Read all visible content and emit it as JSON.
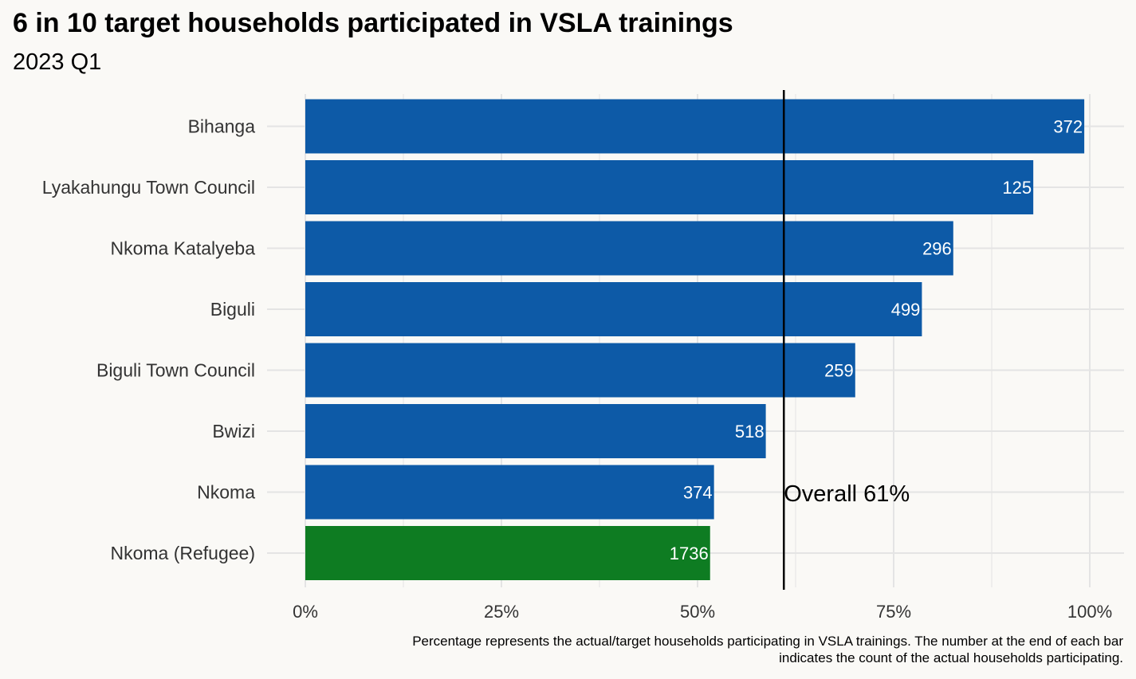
{
  "title": "6 in 10 target households participated in VSLA trainings",
  "subtitle": "2023 Q1",
  "caption_line1": "Percentage represents the actual/target households participating in VSLA trainings. The number at the end of each bar",
  "caption_line2": "indicates the count of the actual households participating.",
  "colors": {
    "bar": "#0d5aa7",
    "highlight": "#0e7c22",
    "background": "#faf9f6",
    "grid": "#e4e4e4"
  },
  "chart_data": {
    "type": "bar",
    "orientation": "horizontal",
    "categories": [
      "Bihanga",
      "Lyakahungu Town Council",
      "Nkoma Katalyeba",
      "Biguli",
      "Biguli Town Council",
      "Bwizi",
      "Nkoma",
      "Nkoma (Refugee)"
    ],
    "values": [
      0.993,
      0.928,
      0.826,
      0.786,
      0.701,
      0.587,
      0.521,
      0.516
    ],
    "counts": [
      "372",
      "125",
      "296",
      "499",
      "259",
      "518",
      "374",
      "1736"
    ],
    "highlight_index": 7,
    "x_ticks": [
      0,
      0.25,
      0.5,
      0.75,
      1.0
    ],
    "x_tick_labels": [
      "0%",
      "25%",
      "50%",
      "75%",
      "100%"
    ],
    "xlim": [
      0,
      1.0
    ],
    "reference_line": {
      "value": 0.61,
      "label": "Overall 61%"
    },
    "xlabel": "",
    "ylabel": "",
    "grid": true
  }
}
